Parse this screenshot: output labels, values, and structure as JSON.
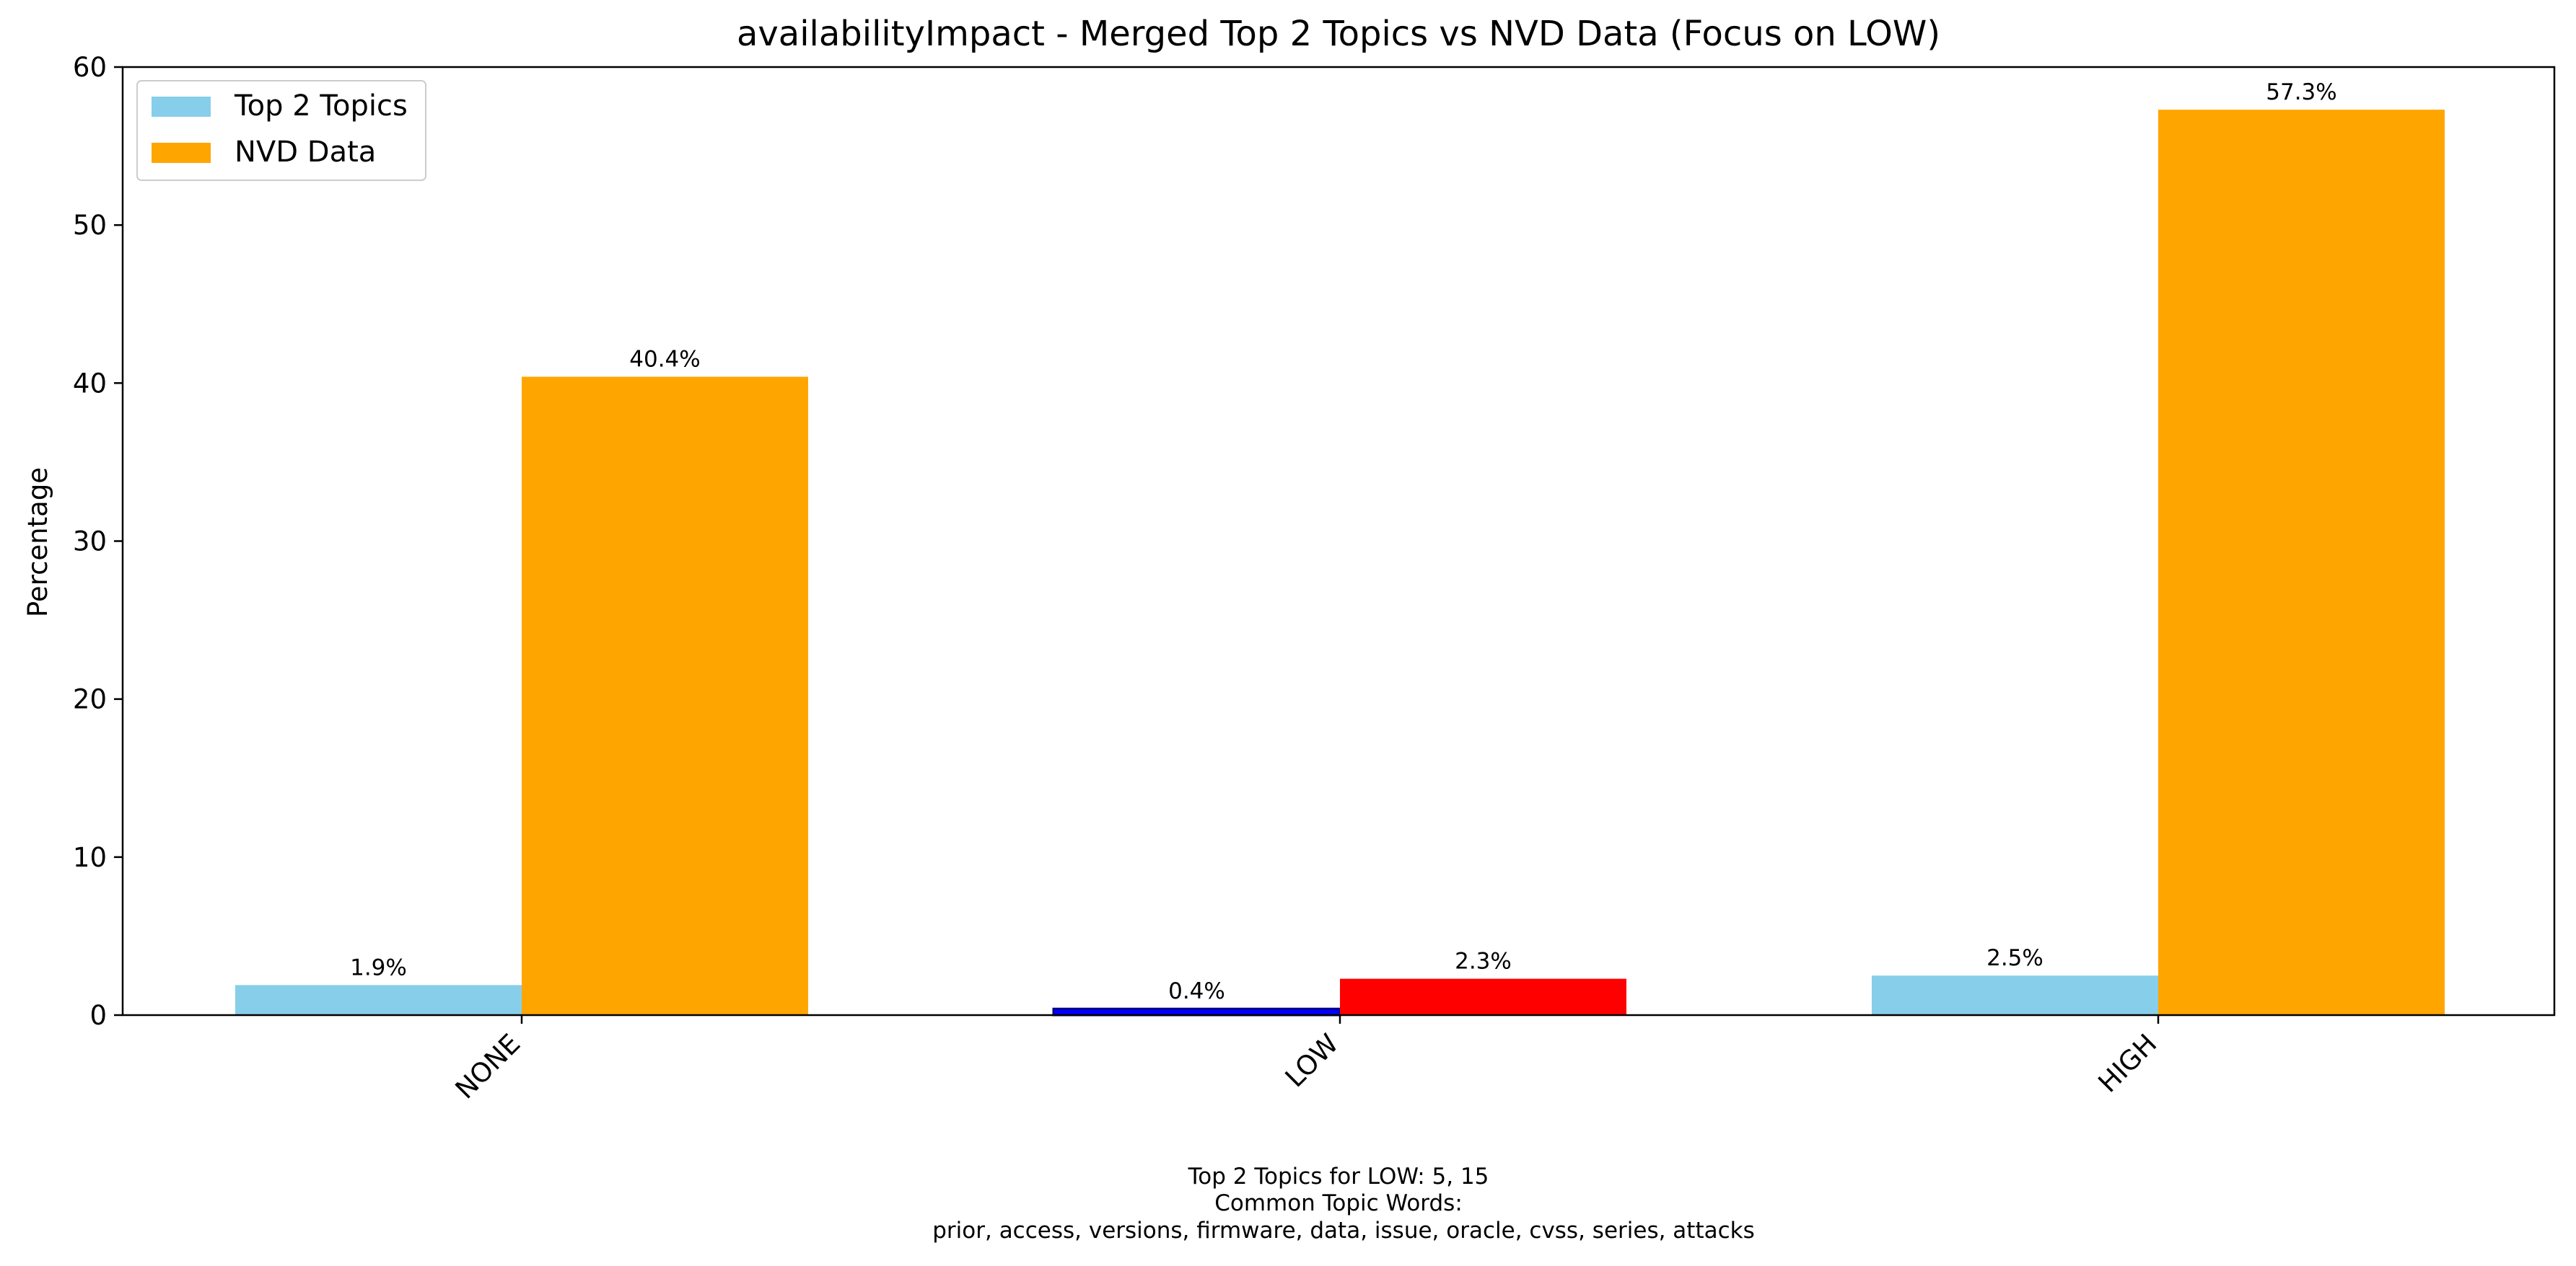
{
  "chart_data": {
    "type": "bar",
    "title": "availabilityImpact - Merged Top 2 Topics vs NVD Data (Focus on LOW)",
    "xlabel": "",
    "ylabel": "Percentage",
    "categories": [
      "NONE",
      "LOW",
      "HIGH"
    ],
    "ylim": [
      0,
      60
    ],
    "yticks": [
      0,
      10,
      20,
      30,
      40,
      50,
      60
    ],
    "grid": false,
    "legend_position": "top-left",
    "series": [
      {
        "name": "Top 2 Topics",
        "color": "#87CEEB",
        "values": [
          1.9,
          0.4,
          2.5
        ],
        "labels": [
          "1.9%",
          "0.4%",
          "2.5%"
        ]
      },
      {
        "name": "NVD Data",
        "color": "#FFA500",
        "values": [
          40.4,
          2.3,
          57.3
        ],
        "labels": [
          "40.4%",
          "2.3%",
          "57.3%"
        ]
      }
    ],
    "highlight": {
      "category": "LOW",
      "series_colors": [
        "#0000FF",
        "#FF0000"
      ],
      "edge_color": "#00008B"
    },
    "footnote_lines": [
      "Top 2 Topics for LOW: 5, 15",
      "Common Topic Words:",
      "prior,  access,  versions,  firmware,  data,  issue,  oracle,  cvss,  series,  attacks"
    ]
  }
}
